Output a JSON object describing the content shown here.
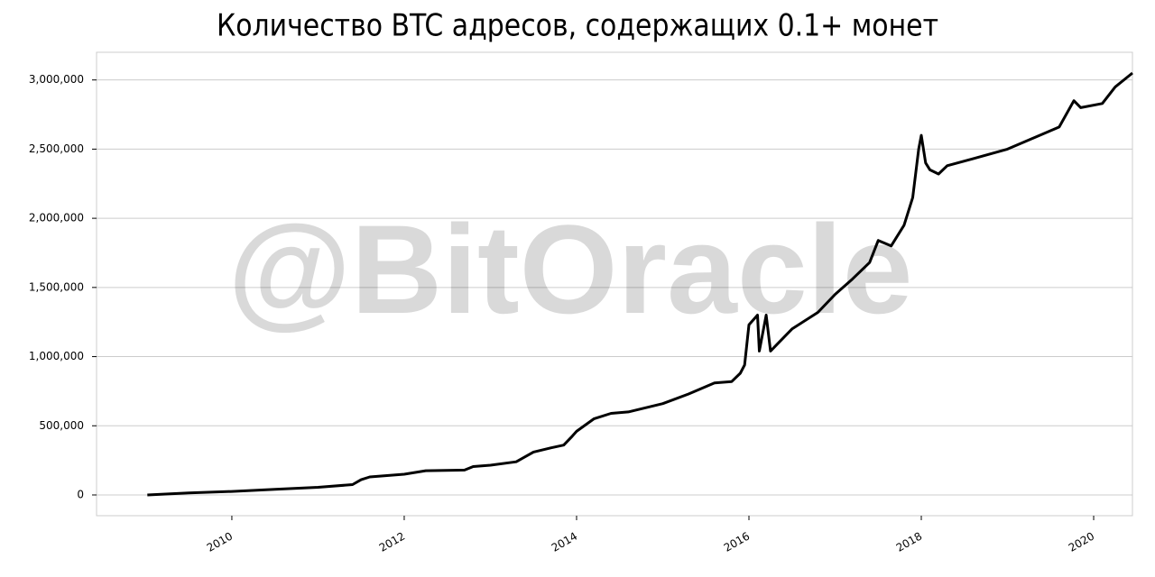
{
  "chart_data": {
    "type": "line",
    "title": "Количество BTC адресов, содержащих 0.1+ монет",
    "watermark": "@BitOracle",
    "color": "#000000",
    "grid": true,
    "x": [
      2009.02,
      2009.5,
      2010.0,
      2010.5,
      2011.0,
      2011.4,
      2011.5,
      2011.6,
      2012.0,
      2012.25,
      2012.7,
      2012.8,
      2013.0,
      2013.3,
      2013.5,
      2013.7,
      2013.85,
      2013.95,
      2014.0,
      2014.2,
      2014.4,
      2014.6,
      2015.0,
      2015.3,
      2015.6,
      2015.8,
      2015.9,
      2015.95,
      2016.0,
      2016.1,
      2016.12,
      2016.2,
      2016.25,
      2016.5,
      2016.8,
      2017.0,
      2017.2,
      2017.4,
      2017.5,
      2017.65,
      2017.8,
      2017.9,
      2017.97,
      2018.0,
      2018.05,
      2018.1,
      2018.2,
      2018.3,
      2018.6,
      2019.0,
      2019.3,
      2019.6,
      2019.77,
      2019.85,
      2020.1,
      2020.25,
      2020.45
    ],
    "values": [
      0,
      15000,
      25000,
      40000,
      55000,
      75000,
      110000,
      130000,
      150000,
      175000,
      180000,
      205000,
      215000,
      240000,
      310000,
      340000,
      360000,
      425000,
      460000,
      550000,
      590000,
      600000,
      660000,
      730000,
      810000,
      820000,
      880000,
      940000,
      1230000,
      1300000,
      1040000,
      1300000,
      1040000,
      1200000,
      1320000,
      1450000,
      1560000,
      1680000,
      1840000,
      1800000,
      1950000,
      2150000,
      2500000,
      2600000,
      2400000,
      2350000,
      2320000,
      2380000,
      2430000,
      2500000,
      2580000,
      2660000,
      2850000,
      2800000,
      2830000,
      2950000,
      3050000
    ],
    "xlim": [
      2008.43,
      2020.45
    ],
    "xticks": [
      2010,
      2012,
      2014,
      2016,
      2018,
      2020
    ],
    "ylim": [
      -150000,
      3200000
    ],
    "yticks": [
      0,
      {
        "value": 500000,
        "label": "500,000"
      },
      {
        "value": 1000000,
        "label": "1,000,000"
      },
      {
        "value": 1500000,
        "label": "1,500,000"
      },
      {
        "value": 2000000,
        "label": "2,000,000"
      },
      {
        "value": 2500000,
        "label": "2,500,000"
      },
      {
        "value": 3000000,
        "label": "3,000,000"
      }
    ]
  }
}
